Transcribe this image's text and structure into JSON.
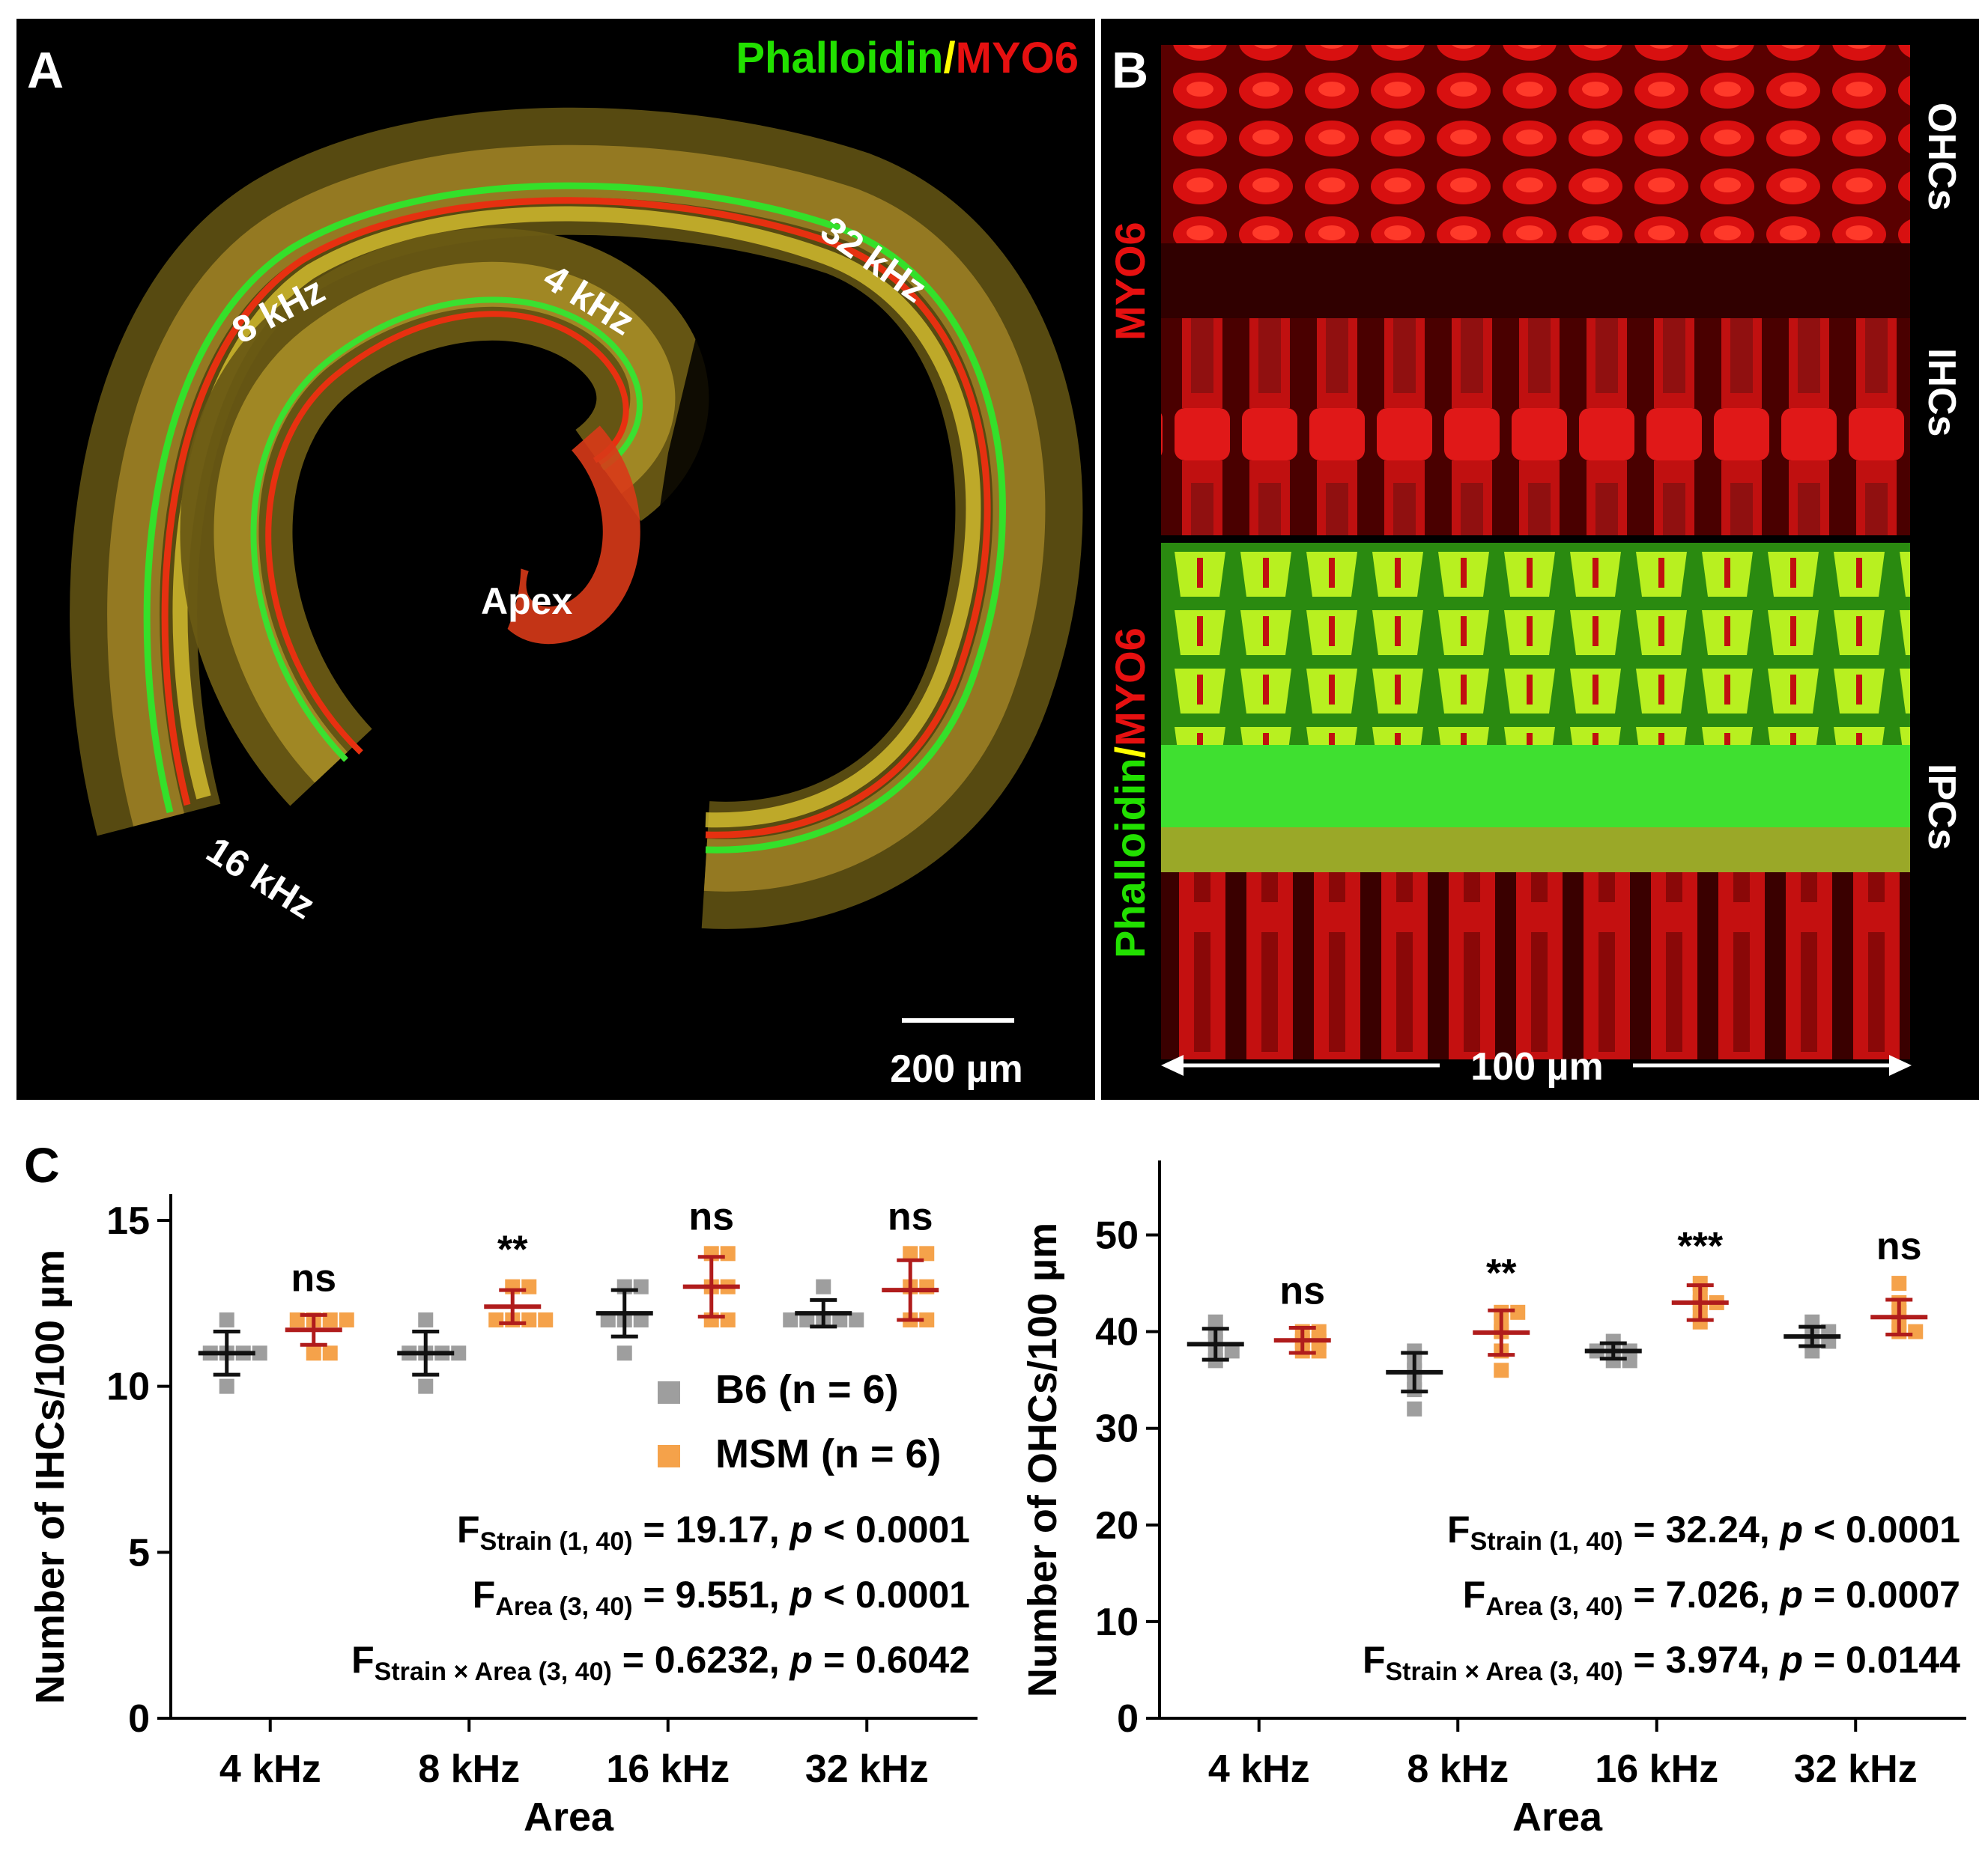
{
  "colors": {
    "b6": "#9e9e9e",
    "msm": "#f5a24a",
    "b6_error": "#111111",
    "msm_error": "#b01c1c",
    "phalloidin": "#22e000",
    "myo6": "#e61010",
    "separator": "#ffff00"
  },
  "panel_a": {
    "letter": "A",
    "stain_green": "Phalloidin",
    "stain_sep": "/",
    "stain_red": "MYO6",
    "labels": {
      "k4": "4 kHz",
      "k8": "8 kHz",
      "k16": "16 kHz",
      "k32": "32 kHz",
      "apex": "Apex"
    },
    "scalebar_label": "200 µm"
  },
  "panel_b": {
    "letter": "B",
    "top_stain": "MYO6",
    "bottom_stain_green": "Phalloidin",
    "bottom_stain_sep": "/",
    "bottom_stain_red": "MYO6",
    "cells": {
      "ohc": "OHCs",
      "ihc": "IHCs",
      "ipc": "IPCs"
    },
    "scale_label": "100 µm"
  },
  "panel_c": {
    "letter": "C",
    "legend": {
      "b6": "B6 (n = 6)",
      "msm": "MSM (n = 6)"
    }
  },
  "chart_data": [
    {
      "type": "scatter",
      "title": "",
      "xlabel": "Area",
      "ylabel": "Number of IHCs/100 µm",
      "categories": [
        "4 kHz",
        "8 kHz",
        "16 kHz",
        "32 kHz"
      ],
      "ylim": [
        0,
        15
      ],
      "yticks": [
        "0",
        "5",
        "10",
        "15"
      ],
      "series": [
        {
          "name": "B6",
          "mean": [
            11.0,
            11.0,
            12.2,
            12.2
          ],
          "sd": [
            0.65,
            0.65,
            0.7,
            0.4
          ],
          "points": [
            [
              10,
              11,
              11,
              11,
              11,
              12
            ],
            [
              10,
              11,
              11,
              11,
              11,
              12
            ],
            [
              11,
              12,
              12,
              12,
              13,
              13
            ],
            [
              12,
              12,
              12,
              12,
              12,
              13
            ]
          ]
        },
        {
          "name": "MSM",
          "mean": [
            11.7,
            12.4,
            13.0,
            12.9
          ],
          "sd": [
            0.45,
            0.5,
            0.9,
            0.9
          ],
          "points": [
            [
              11,
              11,
              12,
              12,
              12,
              12
            ],
            [
              12,
              12,
              12,
              12,
              13,
              13
            ],
            [
              12,
              12,
              13,
              13,
              14,
              14
            ],
            [
              12,
              12,
              13,
              13,
              14,
              14
            ]
          ]
        }
      ],
      "significance": [
        "ns",
        "**",
        "ns",
        "ns"
      ],
      "stats": [
        {
          "f": "F",
          "sub": "Strain (1, 40)",
          "rest_pre": " = 19.17, ",
          "p": "p",
          "rest_post": " < 0.0001"
        },
        {
          "f": "F",
          "sub": "Area (3, 40)",
          "rest_pre": " = 9.551, ",
          "p": "p",
          "rest_post": " < 0.0001"
        },
        {
          "f": "F",
          "sub": "Strain × Area (3, 40)",
          "rest_pre": " = 0.6232, ",
          "p": "p",
          "rest_post": " = 0.6042"
        }
      ]
    },
    {
      "type": "scatter",
      "title": "",
      "xlabel": "Area",
      "ylabel": "Number of OHCs/100 µm",
      "categories": [
        "4 kHz",
        "8 kHz",
        "16 kHz",
        "32 kHz"
      ],
      "ylim": [
        0,
        55
      ],
      "yticks": [
        "0",
        "10",
        "20",
        "30",
        "40",
        "50"
      ],
      "series": [
        {
          "name": "B6",
          "mean": [
            38.7,
            35.8,
            38.0,
            39.5
          ],
          "sd": [
            1.6,
            2.0,
            0.8,
            1.0
          ],
          "points": [
            [
              37,
              38,
              38,
              39,
              40,
              41
            ],
            [
              32,
              34,
              35,
              36,
              37,
              38
            ],
            [
              37,
              37,
              38,
              38,
              38,
              39
            ],
            [
              38,
              39,
              39,
              40,
              40,
              41
            ]
          ]
        },
        {
          "name": "MSM",
          "mean": [
            39.1,
            39.9,
            43.0,
            41.5
          ],
          "sd": [
            1.3,
            2.3,
            1.8,
            1.8
          ],
          "points": [
            [
              38,
              38,
              39,
              39,
              40,
              40
            ],
            [
              36,
              38,
              40,
              41,
              42,
              42
            ],
            [
              41,
              42,
              43,
              43,
              44,
              45
            ],
            [
              40,
              40,
              41,
              42,
              43,
              45
            ]
          ]
        }
      ],
      "significance": [
        "ns",
        "**",
        "***",
        "ns"
      ],
      "stats": [
        {
          "f": "F",
          "sub": "Strain (1, 40)",
          "rest_pre": " = 32.24, ",
          "p": "p",
          "rest_post": " < 0.0001"
        },
        {
          "f": "F",
          "sub": "Area (3, 40)",
          "rest_pre": " = 7.026, ",
          "p": "p",
          "rest_post": " = 0.0007"
        },
        {
          "f": "F",
          "sub": "Strain × Area (3, 40)",
          "rest_pre": " = 3.974, ",
          "p": "p",
          "rest_post": " = 0.0144"
        }
      ]
    }
  ]
}
